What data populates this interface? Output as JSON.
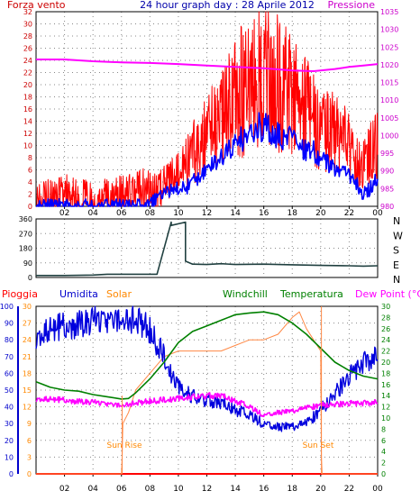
{
  "header": {
    "left_label": "Forza vento",
    "title": "24 hour graph day : 28 Aprile 2012",
    "right_label": "Pressione"
  },
  "colors": {
    "wind": "#ff0000",
    "wind_avg": "#0000ff",
    "pressure": "#ff00ff",
    "direction": "#204040",
    "rain": "#ff0000",
    "humidity": "#0000dd",
    "solar": "#ff8844",
    "windchill": "#008000",
    "temperature": "#008000",
    "dewpoint": "#ff00ff",
    "left_axis_top": "#cc0000",
    "right_axis_top": "#cc00cc",
    "humidity_axis": "#0000cc",
    "solar_axis": "#ff8800",
    "temp_axis": "#008000"
  },
  "x_labels": [
    "02",
    "04",
    "06",
    "08",
    "10",
    "12",
    "14",
    "16",
    "18",
    "20",
    "22",
    "00"
  ],
  "direction_labels": [
    "N",
    "W",
    "S",
    "E",
    "N"
  ],
  "bottom_header": {
    "rain": "Pioggia",
    "humidity": "Umidita",
    "solar": "Solar",
    "windchill": "Windchill",
    "temperature": "Temperatura",
    "dewpoint": "Dew Point (°C)"
  },
  "annotations": {
    "sunrise": "Sun Rise",
    "sunset": "Sun Set"
  },
  "chart_data": [
    {
      "type": "line",
      "title": "24 hour graph day : 28 Aprile 2012",
      "x_unit": "hour",
      "xlim": [
        0,
        24
      ],
      "ylabel_left": "Forza vento",
      "ylabel_right": "Pressione",
      "ylim_left": [
        0,
        32
      ],
      "ylim_right": [
        980,
        1035
      ],
      "yticks_left": [
        "0",
        "2",
        "4",
        "6",
        "8",
        "10",
        "12",
        "14",
        "16",
        "18",
        "20",
        "22",
        "24",
        "26",
        "28",
        "30",
        "32"
      ],
      "yticks_right": [
        "980",
        "985",
        "990",
        "995",
        "1000",
        "1005",
        "1010",
        "1015",
        "1020",
        "1025",
        "1030",
        "1035"
      ],
      "series": [
        {
          "key": "gust",
          "x": [
            0,
            0.5,
            1,
            1.5,
            2,
            2.5,
            3,
            3.5,
            4,
            4.5,
            5,
            5.5,
            6,
            6.5,
            7,
            7.5,
            8,
            8.5,
            9,
            9.5,
            10,
            10.5,
            11,
            11.5,
            12,
            12.5,
            13,
            13.5,
            14,
            14.5,
            15,
            15.5,
            16,
            16.5,
            17,
            17.5,
            18,
            18.5,
            19,
            19.5,
            20,
            20.5,
            21,
            21.5,
            22,
            22.5,
            23,
            23.5,
            24
          ],
          "values": [
            1,
            1,
            1,
            1,
            2,
            2,
            1,
            1,
            0,
            1,
            1,
            1,
            2,
            2,
            2,
            3,
            3,
            2,
            4,
            5,
            6,
            7,
            9,
            10,
            12,
            13,
            14,
            16,
            18,
            19,
            20,
            21,
            22,
            20,
            21,
            19,
            18,
            17,
            16,
            14,
            13,
            12,
            12,
            11,
            10,
            8,
            7,
            9,
            11
          ]
        },
        {
          "key": "average",
          "x": [
            0,
            0.5,
            1,
            1.5,
            2,
            2.5,
            3,
            3.5,
            4,
            4.5,
            5,
            5.5,
            6,
            6.5,
            7,
            7.5,
            8,
            8.5,
            9,
            9.5,
            10,
            10.5,
            11,
            11.5,
            12,
            12.5,
            13,
            13.5,
            14,
            14.5,
            15,
            15.5,
            16,
            16.5,
            17,
            17.5,
            18,
            18.5,
            19,
            19.5,
            20,
            20.5,
            21,
            21.5,
            22,
            22.5,
            23,
            23.5,
            24
          ],
          "values": [
            0,
            0,
            0,
            0,
            0,
            0,
            0,
            0,
            0,
            0,
            0,
            0,
            0,
            0,
            0,
            0,
            1,
            1,
            2,
            3,
            3,
            3,
            4,
            5,
            6,
            7,
            8,
            9,
            10,
            11,
            12,
            13,
            13,
            12,
            12,
            11,
            11,
            10,
            9,
            9,
            8,
            7,
            6,
            6,
            5,
            4,
            2,
            3,
            5
          ]
        },
        {
          "key": "pressure",
          "axis": "right",
          "x": [
            0,
            2,
            4,
            6,
            8,
            10,
            12,
            14,
            16,
            18,
            19.5,
            21,
            22,
            23,
            24
          ],
          "values": [
            1021.5,
            1021.5,
            1021,
            1020.7,
            1020.5,
            1020.2,
            1019.8,
            1019.4,
            1019,
            1018.4,
            1018.2,
            1018.8,
            1019.4,
            1019.8,
            1020.2
          ]
        }
      ]
    },
    {
      "type": "line",
      "x_unit": "hour",
      "xlim": [
        0,
        24
      ],
      "ylim": [
        0,
        360
      ],
      "yticks": [
        "0",
        "90",
        "180",
        "270",
        "360"
      ],
      "series": [
        {
          "key": "wind_direction",
          "x": [
            0,
            2,
            4,
            5,
            6,
            7,
            8,
            8.5,
            9.5,
            9.5,
            10.5,
            10.5,
            11,
            12,
            13,
            14,
            16,
            18,
            20,
            22,
            23,
            24
          ],
          "values": [
            12,
            12,
            15,
            20,
            20,
            20,
            20,
            20,
            340,
            320,
            340,
            100,
            82,
            80,
            85,
            80,
            82,
            78,
            74,
            72,
            70,
            72
          ]
        }
      ]
    },
    {
      "type": "line",
      "x_unit": "hour",
      "xlim": [
        0,
        24
      ],
      "ylim_humidity": [
        0,
        100
      ],
      "ylim_solar": [
        0,
        30
      ],
      "ylim_temperature": [
        0,
        30
      ],
      "yticks_humidity": [
        "0",
        "10",
        "20",
        "30",
        "40",
        "50",
        "60",
        "70",
        "80",
        "90",
        "100"
      ],
      "yticks_solar": [
        "0",
        "3",
        "6",
        "9",
        "12",
        "15",
        "18",
        "21",
        "24",
        "27",
        "30"
      ],
      "yticks_temperature": [
        "0",
        "2",
        "4",
        "6",
        "8",
        "10",
        "12",
        "14",
        "16",
        "18",
        "20",
        "22",
        "24",
        "26",
        "28",
        "30"
      ],
      "series": [
        {
          "key": "rain",
          "x": [
            0,
            24
          ],
          "values": [
            0,
            0
          ]
        },
        {
          "key": "humidity",
          "x": [
            0,
            1,
            2,
            3,
            4,
            5,
            6,
            6.5,
            7,
            7.5,
            8,
            8.5,
            9,
            9.5,
            10,
            11,
            12,
            13,
            14,
            15,
            16,
            17,
            18,
            19,
            20,
            21,
            22,
            23,
            24
          ],
          "values": [
            83,
            86,
            88,
            90,
            91,
            92,
            93,
            93,
            92,
            90,
            85,
            78,
            70,
            60,
            52,
            46,
            44,
            42,
            38,
            35,
            30,
            28,
            28,
            30,
            38,
            48,
            58,
            67,
            70
          ]
        },
        {
          "key": "solar",
          "x": [
            0,
            5,
            6,
            6.05,
            6.1,
            6.5,
            7,
            8,
            9,
            10,
            11,
            12,
            13,
            14,
            15,
            16,
            17,
            18,
            18.5,
            19,
            19.5,
            20,
            20.05,
            20.1,
            24
          ],
          "values": [
            0,
            0,
            0,
            3,
            9,
            11,
            15,
            18,
            21,
            22,
            22,
            22,
            22,
            23,
            24,
            24,
            25,
            28,
            29,
            26,
            24,
            22,
            3,
            0,
            0
          ]
        },
        {
          "key": "temperature",
          "x": [
            0,
            1,
            2,
            3,
            4,
            5,
            6,
            6.5,
            7,
            8,
            9,
            10,
            11,
            12,
            13,
            14,
            15,
            16,
            17,
            18,
            19,
            20,
            21,
            22,
            23,
            24
          ],
          "values": [
            16.5,
            15.5,
            15,
            14.8,
            14.2,
            13.8,
            13.4,
            13.5,
            14.5,
            17,
            20,
            23.5,
            25.5,
            26.5,
            27.5,
            28.5,
            28.8,
            29,
            28.5,
            27,
            25,
            22.5,
            20,
            18.5,
            17.5,
            17
          ]
        },
        {
          "key": "dewpoint",
          "x": [
            0,
            2,
            4,
            6,
            7,
            8,
            10,
            12,
            13,
            14,
            15,
            16,
            17,
            18,
            19,
            20,
            22,
            24
          ],
          "values": [
            13.5,
            13.2,
            12.8,
            12.3,
            12.7,
            13,
            13.5,
            14,
            14,
            13,
            12,
            10.5,
            11,
            11.2,
            11.8,
            12.3,
            12.6,
            12.8
          ]
        }
      ]
    }
  ]
}
